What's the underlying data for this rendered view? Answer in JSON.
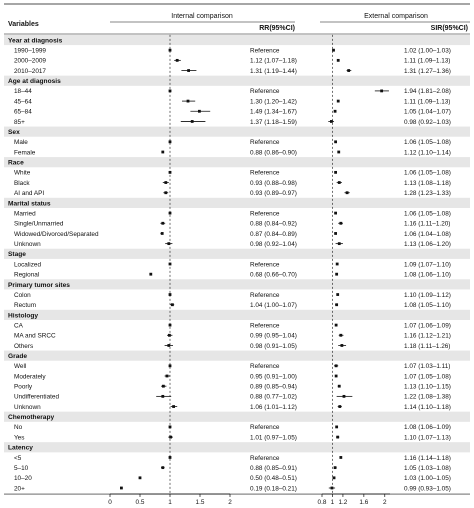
{
  "chart_data": {
    "type": "forest",
    "headers": {
      "variables": "Variables",
      "internal_title": "Internal comparison",
      "internal_col": "RR(95%CI)",
      "external_title": "External comparison",
      "external_col": "SIR(95%CI)"
    },
    "internal_axis": {
      "range": [
        0,
        2
      ],
      "ref": 1,
      "ticks": [
        0,
        0.5,
        1,
        1.5,
        2
      ],
      "tick_labels": [
        "0",
        "0.5",
        "1",
        "1.5",
        "2"
      ]
    },
    "external_axis": {
      "range": [
        0.8,
        2.1
      ],
      "ref": 1,
      "ticks": [
        0.8,
        1,
        1.2,
        1.6,
        2
      ],
      "tick_labels": [
        "0.8",
        "1",
        "1.2",
        "1.6",
        "2"
      ]
    },
    "rows": [
      {
        "label": "Year at diagnosis",
        "header": true
      },
      {
        "label": "1990–1999",
        "rr": 1.0,
        "rr_lo": 1.0,
        "rr_hi": 1.0,
        "rr_text": "Reference",
        "sir": 1.02,
        "sir_lo": 1.0,
        "sir_hi": 1.03,
        "sir_text": "1.02 (1.00–1.03)"
      },
      {
        "label": "2000–2009",
        "rr": 1.12,
        "rr_lo": 1.07,
        "rr_hi": 1.18,
        "rr_text": "1.12 (1.07–1.18)",
        "sir": 1.11,
        "sir_lo": 1.09,
        "sir_hi": 1.13,
        "sir_text": "1.11 (1.09–1.13)"
      },
      {
        "label": "2010–2017",
        "rr": 1.31,
        "rr_lo": 1.19,
        "rr_hi": 1.44,
        "rr_text": "1.31 (1.19–1.44)",
        "sir": 1.31,
        "sir_lo": 1.27,
        "sir_hi": 1.36,
        "sir_text": "1.31 (1.27–1.36)"
      },
      {
        "label": "Age at diagnosis",
        "header": true
      },
      {
        "label": "18–44",
        "rr": 1.0,
        "rr_lo": 1.0,
        "rr_hi": 1.0,
        "rr_text": "Reference",
        "sir": 1.94,
        "sir_lo": 1.81,
        "sir_hi": 2.08,
        "sir_text": "1.94 (1.81–2.08)"
      },
      {
        "label": "45–64",
        "rr": 1.3,
        "rr_lo": 1.2,
        "rr_hi": 1.42,
        "rr_text": "1.30 (1.20–1.42)",
        "sir": 1.11,
        "sir_lo": 1.09,
        "sir_hi": 1.13,
        "sir_text": "1.11 (1.09–1.13)"
      },
      {
        "label": "65–84",
        "rr": 1.49,
        "rr_lo": 1.34,
        "rr_hi": 1.67,
        "rr_text": "1.49 (1.34–1.67)",
        "sir": 1.05,
        "sir_lo": 1.04,
        "sir_hi": 1.07,
        "sir_text": "1.05 (1.04–1.07)"
      },
      {
        "label": "85+",
        "rr": 1.37,
        "rr_lo": 1.18,
        "rr_hi": 1.59,
        "rr_text": "1.37 (1.18–1.59)",
        "sir": 0.98,
        "sir_lo": 0.92,
        "sir_hi": 1.03,
        "sir_text": "0.98 (0.92–1.03)"
      },
      {
        "label": "Sex",
        "header": true
      },
      {
        "label": "Male",
        "rr": 1.0,
        "rr_lo": 1.0,
        "rr_hi": 1.0,
        "rr_text": "Reference",
        "sir": 1.06,
        "sir_lo": 1.05,
        "sir_hi": 1.08,
        "sir_text": "1.06 (1.05–1.08)"
      },
      {
        "label": "Female",
        "rr": 0.88,
        "rr_lo": 0.86,
        "rr_hi": 0.9,
        "rr_text": "0.88 (0.86–0.90)",
        "sir": 1.12,
        "sir_lo": 1.1,
        "sir_hi": 1.14,
        "sir_text": "1.12 (1.10–1.14)"
      },
      {
        "label": "Race",
        "header": true
      },
      {
        "label": "White",
        "rr": 1.0,
        "rr_lo": 1.0,
        "rr_hi": 1.0,
        "rr_text": "Reference",
        "sir": 1.06,
        "sir_lo": 1.05,
        "sir_hi": 1.08,
        "sir_text": "1.06 (1.05–1.08)"
      },
      {
        "label": "Black",
        "rr": 0.93,
        "rr_lo": 0.88,
        "rr_hi": 0.98,
        "rr_text": "0.93 (0.88–0.98)",
        "sir": 1.13,
        "sir_lo": 1.08,
        "sir_hi": 1.18,
        "sir_text": "1.13 (1.08–1.18)"
      },
      {
        "label": "AI and API",
        "rr": 0.93,
        "rr_lo": 0.89,
        "rr_hi": 0.97,
        "rr_text": "0.93 (0.89–0.97)",
        "sir": 1.28,
        "sir_lo": 1.23,
        "sir_hi": 1.33,
        "sir_text": "1.28 (1.23–1.33)"
      },
      {
        "label": "Marital status",
        "header": true
      },
      {
        "label": "Married",
        "rr": 1.0,
        "rr_lo": 1.0,
        "rr_hi": 1.0,
        "rr_text": "Reference",
        "sir": 1.06,
        "sir_lo": 1.05,
        "sir_hi": 1.08,
        "sir_text": "1.06 (1.05–1.08)"
      },
      {
        "label": "Single/Unmarried",
        "rr": 0.88,
        "rr_lo": 0.84,
        "rr_hi": 0.92,
        "rr_text": "0.88 (0.84–0.92)",
        "sir": 1.16,
        "sir_lo": 1.11,
        "sir_hi": 1.2,
        "sir_text": "1.16 (1.11–1.20)"
      },
      {
        "label": "Widowed/Divorced/Separated",
        "rr": 0.87,
        "rr_lo": 0.84,
        "rr_hi": 0.89,
        "rr_text": "0.87 (0.84–0.89)",
        "sir": 1.06,
        "sir_lo": 1.04,
        "sir_hi": 1.08,
        "sir_text": "1.06 (1.04–1.08)"
      },
      {
        "label": "Unknown",
        "rr": 0.98,
        "rr_lo": 0.92,
        "rr_hi": 1.04,
        "rr_text": "0.98 (0.92–1.04)",
        "sir": 1.13,
        "sir_lo": 1.06,
        "sir_hi": 1.2,
        "sir_text": "1.13 (1.06–1.20)"
      },
      {
        "label": "Stage",
        "header": true
      },
      {
        "label": "Localized",
        "rr": 1.0,
        "rr_lo": 1.0,
        "rr_hi": 1.0,
        "rr_text": "Reference",
        "sir": 1.09,
        "sir_lo": 1.07,
        "sir_hi": 1.1,
        "sir_text": "1.09 (1.07–1.10)"
      },
      {
        "label": "Regional",
        "rr": 0.68,
        "rr_lo": 0.66,
        "rr_hi": 0.7,
        "rr_text": "0.68 (0.66–0.70)",
        "sir": 1.08,
        "sir_lo": 1.06,
        "sir_hi": 1.1,
        "sir_text": "1.08 (1.06–1.10)"
      },
      {
        "label": "Primary tumor sites",
        "header": true
      },
      {
        "label": "Colon",
        "rr": 1.0,
        "rr_lo": 1.0,
        "rr_hi": 1.0,
        "rr_text": "Reference",
        "sir": 1.1,
        "sir_lo": 1.09,
        "sir_hi": 1.12,
        "sir_text": "1.10 (1.09–1.12)"
      },
      {
        "label": "Rectum",
        "rr": 1.04,
        "rr_lo": 1.0,
        "rr_hi": 1.07,
        "rr_text": "1.04 (1.00–1.07)",
        "sir": 1.08,
        "sir_lo": 1.05,
        "sir_hi": 1.1,
        "sir_text": "1.08 (1.05–1.10)"
      },
      {
        "label": "Histology",
        "header": true
      },
      {
        "label": "CA",
        "rr": 1.0,
        "rr_lo": 1.0,
        "rr_hi": 1.0,
        "rr_text": "Reference",
        "sir": 1.07,
        "sir_lo": 1.06,
        "sir_hi": 1.09,
        "sir_text": "1.07 (1.06–1.09)"
      },
      {
        "label": "MA and SRCC",
        "rr": 0.99,
        "rr_lo": 0.95,
        "rr_hi": 1.04,
        "rr_text": "0.99 (0.95–1.04)",
        "sir": 1.16,
        "sir_lo": 1.12,
        "sir_hi": 1.21,
        "sir_text": "1.16 (1.12–1.21)"
      },
      {
        "label": "Others",
        "rr": 0.98,
        "rr_lo": 0.91,
        "rr_hi": 1.05,
        "rr_text": "0.98 (0.91–1.05)",
        "sir": 1.18,
        "sir_lo": 1.11,
        "sir_hi": 1.26,
        "sir_text": "1.18 (1.11–1.26)"
      },
      {
        "label": "Grade",
        "header": true
      },
      {
        "label": "Well",
        "rr": 1.0,
        "rr_lo": 1.0,
        "rr_hi": 1.0,
        "rr_text": "Reference",
        "sir": 1.07,
        "sir_lo": 1.03,
        "sir_hi": 1.11,
        "sir_text": "1.07 (1.03–1.11)"
      },
      {
        "label": "Moderately",
        "rr": 0.95,
        "rr_lo": 0.91,
        "rr_hi": 1.0,
        "rr_text": "0.95 (0.91–1.00)",
        "sir": 1.07,
        "sir_lo": 1.05,
        "sir_hi": 1.08,
        "sir_text": "1.07 (1.05–1.08)"
      },
      {
        "label": "Poorly",
        "rr": 0.89,
        "rr_lo": 0.85,
        "rr_hi": 0.94,
        "rr_text": "0.89 (0.85–0.94)",
        "sir": 1.13,
        "sir_lo": 1.1,
        "sir_hi": 1.15,
        "sir_text": "1.13 (1.10–1.15)"
      },
      {
        "label": "Undifferentiated",
        "rr": 0.88,
        "rr_lo": 0.77,
        "rr_hi": 1.02,
        "rr_text": "0.88 (0.77–1.02)",
        "sir": 1.22,
        "sir_lo": 1.08,
        "sir_hi": 1.38,
        "sir_text": "1.22 (1.08–1.38)"
      },
      {
        "label": "Unknown",
        "rr": 1.06,
        "rr_lo": 1.01,
        "rr_hi": 1.12,
        "rr_text": "1.06 (1.01–1.12)",
        "sir": 1.14,
        "sir_lo": 1.1,
        "sir_hi": 1.18,
        "sir_text": "1.14 (1.10–1.18)"
      },
      {
        "label": "Chemotherapy",
        "header": true
      },
      {
        "label": "No",
        "rr": 1.0,
        "rr_lo": 1.0,
        "rr_hi": 1.0,
        "rr_text": "Reference",
        "sir": 1.08,
        "sir_lo": 1.06,
        "sir_hi": 1.09,
        "sir_text": "1.08 (1.06–1.09)"
      },
      {
        "label": "Yes",
        "rr": 1.01,
        "rr_lo": 0.97,
        "rr_hi": 1.05,
        "rr_text": "1.01 (0.97–1.05)",
        "sir": 1.1,
        "sir_lo": 1.07,
        "sir_hi": 1.13,
        "sir_text": "1.10 (1.07–1.13)"
      },
      {
        "label": "Latency",
        "header": true
      },
      {
        "label": "<5",
        "rr": 1.0,
        "rr_lo": 1.0,
        "rr_hi": 1.0,
        "rr_text": "Reference",
        "sir": 1.16,
        "sir_lo": 1.14,
        "sir_hi": 1.18,
        "sir_text": "1.16 (1.14–1.18)"
      },
      {
        "label": "5–10",
        "rr": 0.88,
        "rr_lo": 0.85,
        "rr_hi": 0.91,
        "rr_text": "0.88 (0.85–0.91)",
        "sir": 1.05,
        "sir_lo": 1.03,
        "sir_hi": 1.08,
        "sir_text": "1.05 (1.03–1.08)"
      },
      {
        "label": "10–20",
        "rr": 0.5,
        "rr_lo": 0.48,
        "rr_hi": 0.51,
        "rr_text": "0.50 (0.48–0.51)",
        "sir": 1.03,
        "sir_lo": 1.0,
        "sir_hi": 1.05,
        "sir_text": "1.03 (1.00–1.05)"
      },
      {
        "label": "20+",
        "rr": 0.19,
        "rr_lo": 0.18,
        "rr_hi": 0.21,
        "rr_text": "0.19 (0.18–0.21)",
        "sir": 0.99,
        "sir_lo": 0.93,
        "sir_hi": 1.05,
        "sir_text": "0.99 (0.93–1.05)"
      }
    ]
  }
}
